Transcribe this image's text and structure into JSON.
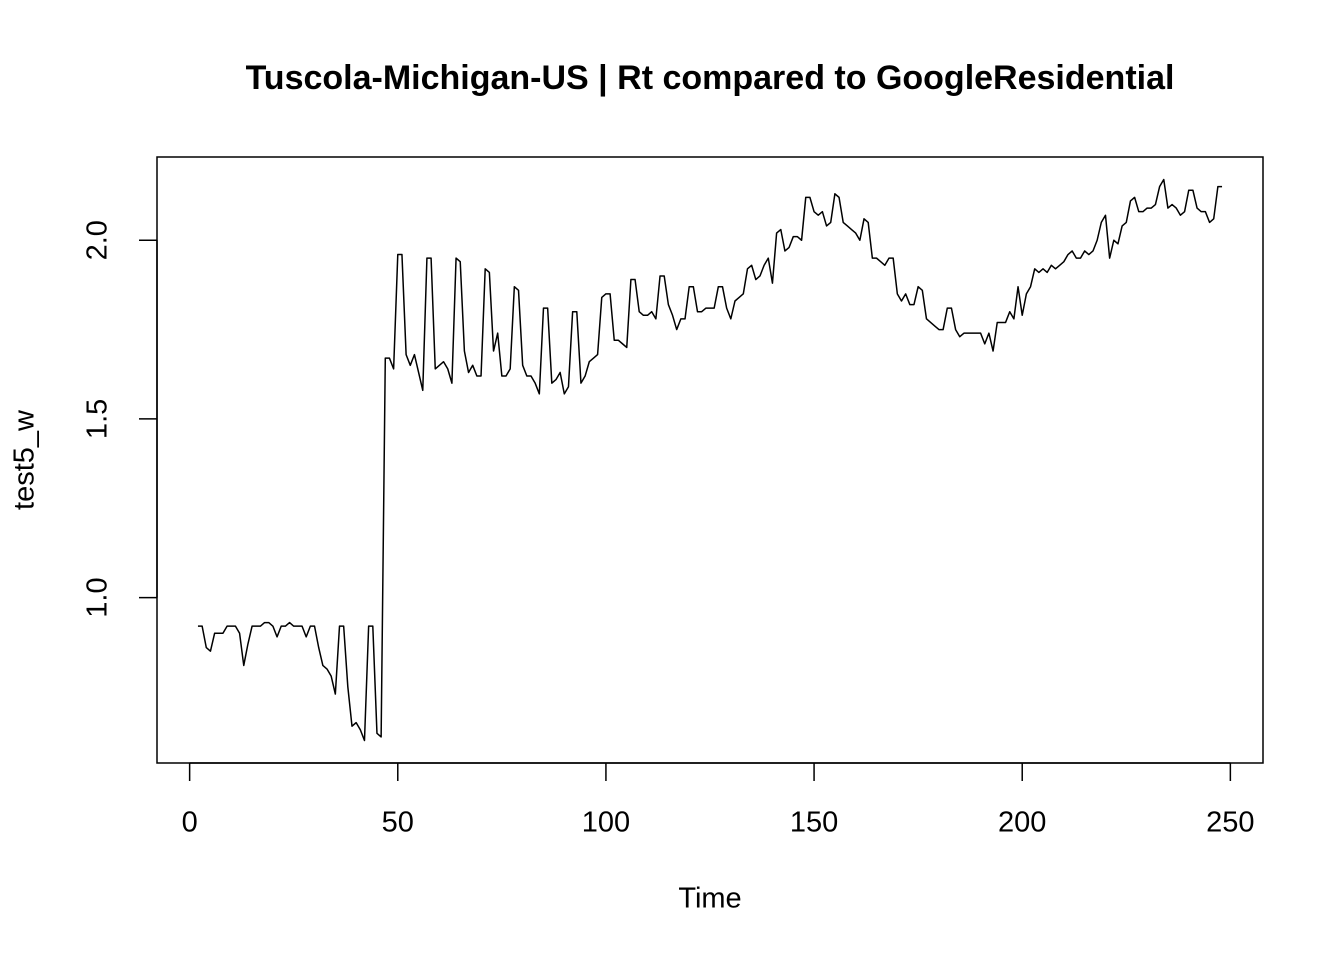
{
  "chart_data": {
    "type": "line",
    "title": "Tuscola-Michigan-US | Rt compared to GoogleResidential",
    "xlabel": "Time",
    "ylabel": "test5_w",
    "color": "#000000",
    "xlim": [
      -7.84,
      257.84
    ],
    "ylim": [
      0.537,
      2.233
    ],
    "xticks": [
      0,
      50,
      100,
      150,
      200,
      250
    ],
    "yticks": [
      {
        "value": 1,
        "label": "1.0"
      },
      {
        "value": 1.5,
        "label": "1.5"
      },
      {
        "value": 2,
        "label": "2.0"
      }
    ],
    "x": [
      2,
      3,
      4,
      5,
      6,
      7,
      8,
      9,
      10,
      11,
      12,
      13,
      14,
      15,
      16,
      17,
      18,
      19,
      20,
      21,
      22,
      23,
      24,
      25,
      26,
      27,
      28,
      29,
      30,
      31,
      32,
      33,
      34,
      35,
      36,
      37,
      38,
      39,
      40,
      41,
      42,
      43,
      44,
      45,
      46,
      47,
      48,
      49,
      50,
      51,
      52,
      53,
      54,
      55,
      56,
      57,
      58,
      59,
      60,
      61,
      62,
      63,
      64,
      65,
      66,
      67,
      68,
      69,
      70,
      71,
      72,
      73,
      74,
      75,
      76,
      77,
      78,
      79,
      80,
      81,
      82,
      83,
      84,
      85,
      86,
      87,
      88,
      89,
      90,
      91,
      92,
      93,
      94,
      95,
      96,
      97,
      98,
      99,
      100,
      101,
      102,
      103,
      104,
      105,
      106,
      107,
      108,
      109,
      110,
      111,
      112,
      113,
      114,
      115,
      116,
      117,
      118,
      119,
      120,
      121,
      122,
      123,
      124,
      125,
      126,
      127,
      128,
      129,
      130,
      131,
      132,
      133,
      134,
      135,
      136,
      137,
      138,
      139,
      140,
      141,
      142,
      143,
      144,
      145,
      146,
      147,
      148,
      149,
      150,
      151,
      152,
      153,
      154,
      155,
      156,
      157,
      158,
      159,
      160,
      161,
      162,
      163,
      164,
      165,
      166,
      167,
      168,
      169,
      170,
      171,
      172,
      173,
      174,
      175,
      176,
      177,
      178,
      179,
      180,
      181,
      182,
      183,
      184,
      185,
      186,
      187,
      188,
      189,
      190,
      191,
      192,
      193,
      194,
      195,
      196,
      197,
      198,
      199,
      200,
      201,
      202,
      203,
      204,
      205,
      206,
      207,
      208,
      209,
      210,
      211,
      212,
      213,
      214,
      215,
      216,
      217,
      218,
      219,
      220,
      221,
      222,
      223,
      224,
      225,
      226,
      227,
      228,
      229,
      230,
      231,
      232,
      233,
      234,
      235,
      236,
      237,
      238,
      239,
      240,
      241,
      242,
      243,
      244,
      245,
      246,
      247,
      248
    ],
    "values": [
      0.92,
      0.92,
      0.86,
      0.85,
      0.9,
      0.9,
      0.9,
      0.92,
      0.92,
      0.92,
      0.9,
      0.81,
      0.87,
      0.92,
      0.92,
      0.92,
      0.93,
      0.93,
      0.92,
      0.89,
      0.92,
      0.92,
      0.93,
      0.92,
      0.92,
      0.92,
      0.89,
      0.92,
      0.92,
      0.86,
      0.81,
      0.8,
      0.78,
      0.73,
      0.92,
      0.92,
      0.75,
      0.64,
      0.65,
      0.63,
      0.6,
      0.92,
      0.92,
      0.62,
      0.61,
      1.67,
      1.67,
      1.64,
      1.96,
      1.96,
      1.68,
      1.65,
      1.68,
      1.63,
      1.58,
      1.95,
      1.95,
      1.64,
      1.65,
      1.66,
      1.64,
      1.6,
      1.95,
      1.94,
      1.69,
      1.63,
      1.65,
      1.62,
      1.62,
      1.92,
      1.91,
      1.69,
      1.74,
      1.62,
      1.62,
      1.64,
      1.87,
      1.86,
      1.65,
      1.62,
      1.62,
      1.6,
      1.57,
      1.81,
      1.81,
      1.6,
      1.61,
      1.63,
      1.57,
      1.59,
      1.8,
      1.8,
      1.6,
      1.62,
      1.66,
      1.67,
      1.68,
      1.84,
      1.85,
      1.85,
      1.72,
      1.72,
      1.71,
      1.7,
      1.89,
      1.89,
      1.8,
      1.79,
      1.79,
      1.8,
      1.78,
      1.9,
      1.9,
      1.82,
      1.79,
      1.75,
      1.78,
      1.78,
      1.87,
      1.87,
      1.8,
      1.8,
      1.81,
      1.81,
      1.81,
      1.87,
      1.87,
      1.81,
      1.78,
      1.83,
      1.84,
      1.85,
      1.92,
      1.93,
      1.89,
      1.9,
      1.93,
      1.95,
      1.88,
      2.02,
      2.03,
      1.97,
      1.98,
      2.01,
      2.01,
      2.0,
      2.12,
      2.12,
      2.08,
      2.07,
      2.08,
      2.04,
      2.05,
      2.13,
      2.12,
      2.05,
      2.04,
      2.03,
      2.02,
      2.0,
      2.06,
      2.05,
      1.95,
      1.95,
      1.94,
      1.93,
      1.95,
      1.95,
      1.85,
      1.83,
      1.85,
      1.82,
      1.82,
      1.87,
      1.86,
      1.78,
      1.77,
      1.76,
      1.75,
      1.75,
      1.81,
      1.81,
      1.75,
      1.73,
      1.74,
      1.74,
      1.74,
      1.74,
      1.74,
      1.71,
      1.74,
      1.69,
      1.77,
      1.77,
      1.77,
      1.8,
      1.78,
      1.87,
      1.79,
      1.85,
      1.87,
      1.92,
      1.91,
      1.92,
      1.91,
      1.93,
      1.92,
      1.93,
      1.94,
      1.96,
      1.97,
      1.95,
      1.95,
      1.97,
      1.96,
      1.97,
      2.0,
      2.05,
      2.07,
      1.95,
      2.0,
      1.99,
      2.04,
      2.05,
      2.11,
      2.12,
      2.08,
      2.08,
      2.09,
      2.09,
      2.1,
      2.15,
      2.17,
      2.09,
      2.1,
      2.09,
      2.07,
      2.08,
      2.14,
      2.14,
      2.09,
      2.08,
      2.08,
      2.05,
      2.06,
      2.15,
      2.15
    ]
  }
}
